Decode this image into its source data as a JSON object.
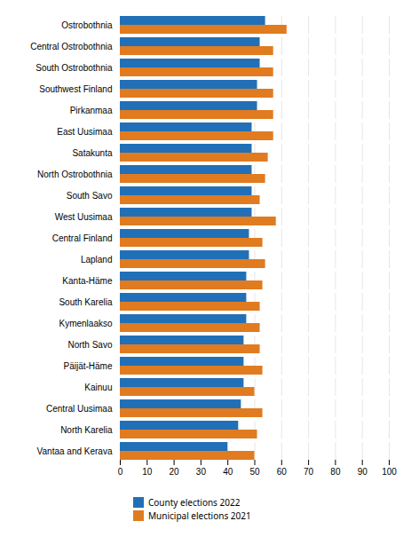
{
  "chart_data": {
    "type": "bar",
    "orientation": "horizontal",
    "categories": [
      "Ostrobothnia",
      "Central Ostrobothnia",
      "South Ostrobothnia",
      "Southwest Finland",
      "Pirkanmaa",
      "East Uusimaa",
      "Satakunta",
      "North Ostrobothnia",
      "South Savo",
      "West Uusimaa",
      "Central Finland",
      "Lapland",
      "Kanta-Häme",
      "South Karelia",
      "Kymenlaakso",
      "North Savo",
      "Päijät-Häme",
      "Kainuu",
      "Central Uusimaa",
      "North Karelia",
      "Vantaa and Kerava"
    ],
    "series": [
      {
        "name": "County elections 2022",
        "color": "#2170b7",
        "values": [
          54,
          52,
          52,
          51,
          51,
          49,
          49,
          49,
          49,
          49,
          48,
          48,
          47,
          47,
          47,
          46,
          46,
          46,
          45,
          44,
          40
        ]
      },
      {
        "name": "Municipal elections 2021",
        "color": "#e07b20",
        "values": [
          62,
          57,
          57,
          57,
          57,
          57,
          55,
          54,
          52,
          58,
          53,
          54,
          53,
          52,
          52,
          52,
          53,
          50,
          53,
          51,
          50
        ]
      }
    ],
    "xlim": [
      0,
      100
    ],
    "xticks": [
      0,
      10,
      20,
      30,
      40,
      50,
      60,
      70,
      80,
      90,
      100
    ],
    "grid": true,
    "legend": "bottom"
  }
}
